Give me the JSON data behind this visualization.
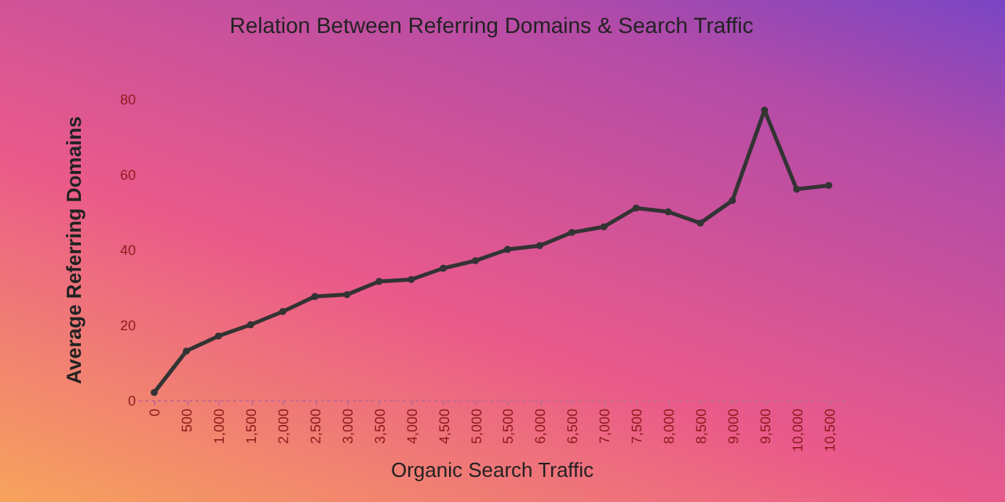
{
  "chart_data": {
    "type": "line",
    "title": "Relation Between Referring Domains & Search Traffic",
    "xlabel": "Organic Search Traffic",
    "ylabel": "Average Referring Domains",
    "categories": [
      "0",
      "500",
      "1,000",
      "1,500",
      "2,000",
      "2,500",
      "3,000",
      "3,500",
      "4,000",
      "4,500",
      "5,000",
      "5,500",
      "6,000",
      "6,500",
      "7,000",
      "7,500",
      "8,000",
      "8,500",
      "9,000",
      "9,500",
      "10,000",
      "10,500"
    ],
    "series": [
      {
        "color": "#333333",
        "values": [
          2,
          13,
          17,
          20,
          23.5,
          27.5,
          28,
          31.5,
          32,
          35,
          37,
          40,
          41,
          44.5,
          46,
          51,
          50,
          47,
          53,
          77,
          56,
          57
        ]
      }
    ],
    "ylim": [
      0,
      80
    ],
    "yticks": [
      0,
      20,
      40,
      60,
      80
    ],
    "grid": false,
    "marker": "circle",
    "line_style": "solid"
  }
}
